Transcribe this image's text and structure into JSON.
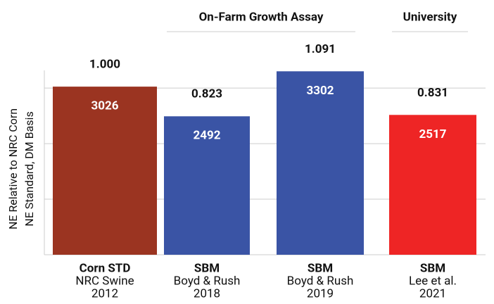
{
  "chart_data": {
    "type": "bar",
    "y_label_lines": [
      "NE Relative to NRC Corn",
      "NE Standard, DM Basis"
    ],
    "groups": [
      {
        "label": "On-Farm Growth Assay",
        "from": 1,
        "to": 2
      },
      {
        "label": "University",
        "from": 3,
        "to": 3
      }
    ],
    "categories": [
      "Corn STD",
      "SBM",
      "SBM",
      "SBM"
    ],
    "sources": [
      "NRC Swine",
      "Boyd & Rush",
      "Boyd & Rush",
      "Lee et al."
    ],
    "years": [
      "2012",
      "2018",
      "2019",
      "2021"
    ],
    "values": [
      3026,
      2492,
      3302,
      2517
    ],
    "relative_labels": [
      "1.000",
      "0.823",
      "1.091",
      "0.831"
    ],
    "colors": [
      "#9b3421",
      "#3a54a5",
      "#3a54a5",
      "#ee2525"
    ],
    "ylim": [
      0,
      3800
    ],
    "yticks": [
      0,
      1000,
      2000,
      3000
    ],
    "grid": true
  }
}
